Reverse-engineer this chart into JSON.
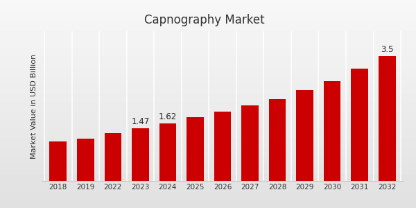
{
  "title": "Capnography Market",
  "ylabel": "Market Value in USD Billion",
  "categories": [
    "2018",
    "2019",
    "2022",
    "2023",
    "2024",
    "2025",
    "2026",
    "2027",
    "2028",
    "2029",
    "2030",
    "2031",
    "2032"
  ],
  "values": [
    1.1,
    1.18,
    1.35,
    1.47,
    1.62,
    1.78,
    1.95,
    2.12,
    2.3,
    2.55,
    2.8,
    3.15,
    3.5
  ],
  "bar_color": "#cc0000",
  "background_color": "#ebebeb",
  "title_fontsize": 12,
  "axis_label_fontsize": 8,
  "tick_fontsize": 7.5,
  "labeled_bars": {
    "2023": "1.47",
    "2024": "1.62",
    "2032": "3.5"
  },
  "ylim": [
    0,
    4.2
  ],
  "bottom_bar_color": "#cc0000",
  "figsize": [
    6.0,
    3.0
  ],
  "dpi": 100
}
